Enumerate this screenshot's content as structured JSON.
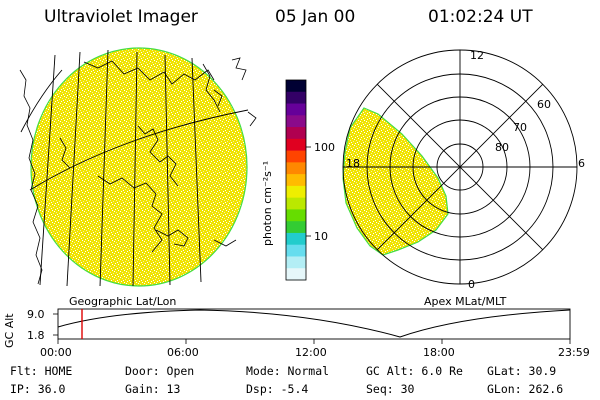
{
  "header": {
    "instrument": "Ultraviolet Imager",
    "date": "05 Jan 00",
    "time": "01:02:24 UT"
  },
  "colorbar": {
    "unit_label": "photon cm⁻²s⁻¹",
    "ticks": [
      "100",
      "10"
    ],
    "colors": [
      "#000033",
      "#330066",
      "#660099",
      "#8a0a8a",
      "#b00050",
      "#e00020",
      "#ff4400",
      "#ff8800",
      "#ffbb00",
      "#eeee00",
      "#bbe800",
      "#66dd00",
      "#33cc33",
      "#22cccc",
      "#66ddee",
      "#b3eef5",
      "#e6f7fa"
    ]
  },
  "left_panel": {
    "caption": "Geographic Lat/Lon",
    "fill_color": "#f0e300"
  },
  "right_panel": {
    "caption": "Apex MLat/MLT",
    "mlt_labels": {
      "top": "12",
      "left": "18",
      "right": "6",
      "bottom": "0"
    },
    "lat_labels": [
      "60",
      "70",
      "80"
    ]
  },
  "altitude_strip": {
    "axis_label": "GC Alt",
    "y_ticks": [
      "9.0",
      "1.8"
    ],
    "time_ticks": [
      "00:00",
      "06:00",
      "12:00",
      "18:00",
      "23:59"
    ],
    "marker_color": "#dd0000"
  },
  "status": {
    "flt": "Flt: HOME",
    "ip": "IP: 36.0",
    "door": "Door: Open",
    "gain": "Gain: 13",
    "mode": "Mode: Normal",
    "dsp": "Dsp:   -5.4",
    "gcalt": "GC Alt: 6.0 Re",
    "seq": "Seq: 30",
    "glat": "GLat:  30.9",
    "glon": "GLon: 262.6"
  }
}
